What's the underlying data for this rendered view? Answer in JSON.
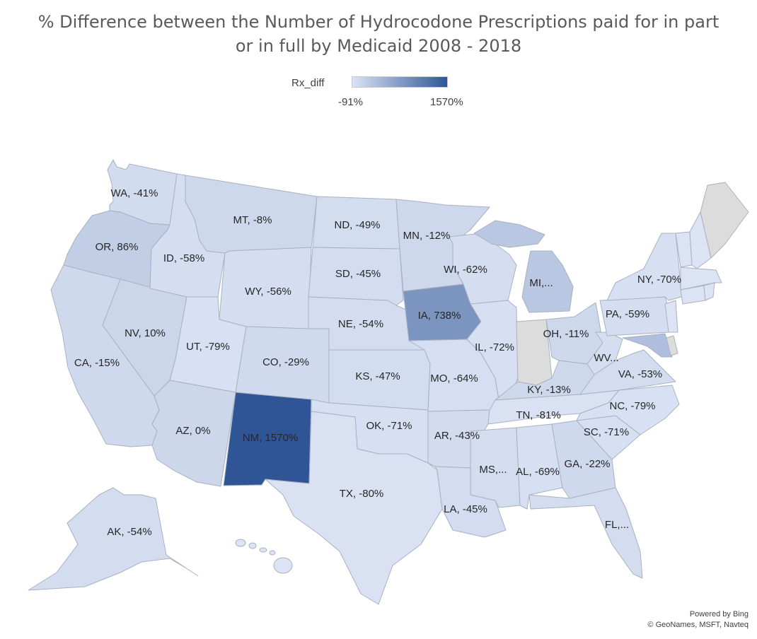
{
  "title": {
    "line1": "% Difference between the Number of Hydrocodone Prescriptions paid for in part",
    "line2": "or in full by Medicaid 2008 - 2018"
  },
  "legend": {
    "label": "Rx_diff",
    "min_label": "-91%",
    "max_label": "1570%",
    "min_value": -91,
    "max_value": 1570,
    "low_color": "#dbe3f4",
    "high_color": "#2f5597",
    "nodata_color": "#dcdcdc"
  },
  "credits": {
    "line1": "Powered by Bing",
    "line2": "© GeoNames, MSFT, Navteq"
  },
  "states": [
    {
      "code": "WA",
      "label": "WA, -41%",
      "value": -41
    },
    {
      "code": "OR",
      "label": "OR, 86%",
      "value": 86
    },
    {
      "code": "CA",
      "label": "CA, -15%",
      "value": -15
    },
    {
      "code": "NV",
      "label": "NV, 10%",
      "value": 10
    },
    {
      "code": "ID",
      "label": "ID, -58%",
      "value": -58
    },
    {
      "code": "MT",
      "label": "MT, -8%",
      "value": -8
    },
    {
      "code": "WY",
      "label": "WY, -56%",
      "value": -56
    },
    {
      "code": "UT",
      "label": "UT, -79%",
      "value": -79
    },
    {
      "code": "AZ",
      "label": "AZ, 0%",
      "value": 0
    },
    {
      "code": "CO",
      "label": "CO, -29%",
      "value": -29
    },
    {
      "code": "NM",
      "label": "NM, 1570%",
      "value": 1570
    },
    {
      "code": "ND",
      "label": "ND, -49%",
      "value": -49
    },
    {
      "code": "SD",
      "label": "SD, -45%",
      "value": -45
    },
    {
      "code": "NE",
      "label": "NE, -54%",
      "value": -54
    },
    {
      "code": "KS",
      "label": "KS, -47%",
      "value": -47
    },
    {
      "code": "OK",
      "label": "OK, -71%",
      "value": -71
    },
    {
      "code": "TX",
      "label": "TX, -80%",
      "value": -80
    },
    {
      "code": "MN",
      "label": "MN, -12%",
      "value": -12
    },
    {
      "code": "IA",
      "label": "IA, 738%",
      "value": 738
    },
    {
      "code": "MO",
      "label": "MO, -64%",
      "value": -64
    },
    {
      "code": "AR",
      "label": "AR, -43%",
      "value": -43
    },
    {
      "code": "LA",
      "label": "LA, -45%",
      "value": -45
    },
    {
      "code": "WI",
      "label": "WI, -62%",
      "value": -62
    },
    {
      "code": "IL",
      "label": "IL, -72%",
      "value": -72
    },
    {
      "code": "MI",
      "label": "MI,...",
      "value": 150
    },
    {
      "code": "IN",
      "label": "",
      "value": null
    },
    {
      "code": "OH",
      "label": "OH, -11%",
      "value": -11
    },
    {
      "code": "KY",
      "label": "KY, -13%",
      "value": -13
    },
    {
      "code": "TN",
      "label": "TN, -81%",
      "value": -81
    },
    {
      "code": "MS",
      "label": "MS,...",
      "value": -50
    },
    {
      "code": "AL",
      "label": "AL, -69%",
      "value": -69
    },
    {
      "code": "GA",
      "label": "GA, -22%",
      "value": -22
    },
    {
      "code": "FL",
      "label": "FL,...",
      "value": -50
    },
    {
      "code": "SC",
      "label": "SC, -71%",
      "value": -71
    },
    {
      "code": "NC",
      "label": "NC, -79%",
      "value": -79
    },
    {
      "code": "VA",
      "label": "VA, -53%",
      "value": -53
    },
    {
      "code": "WV",
      "label": "WV...",
      "value": -60
    },
    {
      "code": "PA",
      "label": "PA, -59%",
      "value": -59
    },
    {
      "code": "NY",
      "label": "NY, -70%",
      "value": -70
    },
    {
      "code": "ME",
      "label": "",
      "value": null
    },
    {
      "code": "MD",
      "label": "",
      "value": 250
    },
    {
      "code": "DE",
      "label": "",
      "value": null
    },
    {
      "code": "AK",
      "label": "AK, -54%",
      "value": -54
    }
  ]
}
